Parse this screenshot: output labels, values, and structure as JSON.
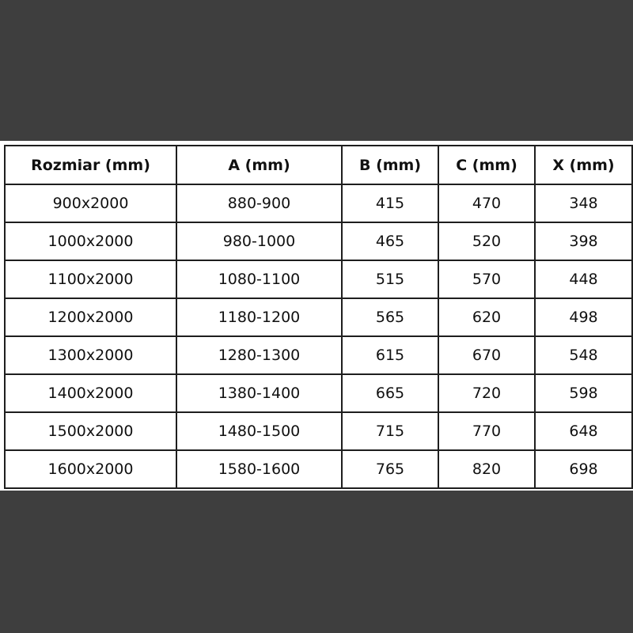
{
  "table": {
    "headers": [
      "Rozmiar (mm)",
      "A (mm)",
      "B (mm)",
      "C (mm)",
      "X (mm)"
    ],
    "rows": [
      [
        "900x2000",
        "880-900",
        "415",
        "470",
        "348"
      ],
      [
        "1000x2000",
        "980-1000",
        "465",
        "520",
        "398"
      ],
      [
        "1100x2000",
        "1080-1100",
        "515",
        "570",
        "448"
      ],
      [
        "1200x2000",
        "1180-1200",
        "565",
        "620",
        "498"
      ],
      [
        "1300x2000",
        "1280-1300",
        "615",
        "670",
        "548"
      ],
      [
        "1400x2000",
        "1380-1400",
        "665",
        "720",
        "598"
      ],
      [
        "1500x2000",
        "1480-1500",
        "715",
        "770",
        "648"
      ],
      [
        "1600x2000",
        "1580-1600",
        "765",
        "820",
        "698"
      ]
    ]
  },
  "colors": {
    "background": "#3e3e3e",
    "table_background": "#ffffff",
    "border": "#1e1e1e"
  }
}
